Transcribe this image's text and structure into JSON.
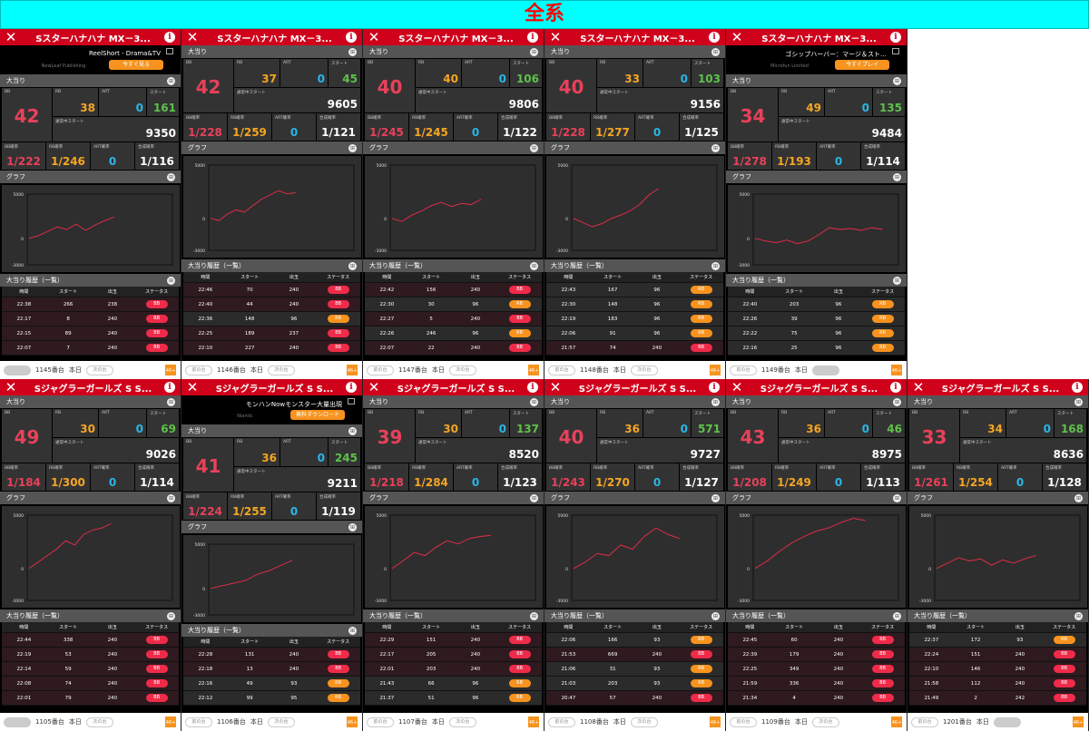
{
  "title": "全系",
  "labels": {
    "jackpot": "大当り",
    "graph": "グラフ",
    "history": "大当り履歴（一覧）",
    "bb": "BB",
    "rb": "RB",
    "art": "ART",
    "start": "スタート",
    "normal_start": "通常中スタート",
    "bb_rate": "BB確率",
    "rb_rate": "RB確率",
    "art_rate": "ART確率",
    "total_rate": "合成確率",
    "col_time": "時間",
    "col_start": "スタート",
    "col_out": "出玉",
    "col_status": "ステータス",
    "prev": "前の台",
    "next": "次の台",
    "today": "本日",
    "close": "✕",
    "info": "i",
    "grid_icon": "⊞",
    "app_badge": "46+",
    "graph_ticks": [
      "5000",
      "0",
      "-3000"
    ]
  },
  "colors": {
    "bb": "#e8415a",
    "rb": "#f5a623",
    "art": "#29b6e8",
    "start": "#5ec24a",
    "header": "#d0021b"
  },
  "panels": [
    {
      "title": "Sスターハナハナ MX－3...",
      "ad": {
        "title": "ReelShort - Drama&TV",
        "publisher": "NewLeaf Publishing",
        "button": "今すぐ見る"
      },
      "bb": "42",
      "rb": "38",
      "art": "0",
      "start": "161",
      "normal_start": "9350",
      "bb_rate": "1/222",
      "rb_rate": "1/246",
      "art_rate": "0",
      "total_rate": "1/116",
      "graph": {
        "progress": 0.6,
        "values": [
          0,
          300,
          800,
          1300,
          1000,
          1600,
          900,
          1500,
          2000,
          2400
        ]
      },
      "history": [
        [
          "22:38",
          "266",
          "238",
          "BB"
        ],
        [
          "22:17",
          "8",
          "240",
          "BB"
        ],
        [
          "22:15",
          "89",
          "240",
          "BB"
        ],
        [
          "22:07",
          "7",
          "240",
          "BB"
        ]
      ],
      "machine": "1145番台",
      "prev_enabled": false,
      "next_enabled": true
    },
    {
      "title": "Sスターハナハナ MX－3...",
      "bb": "42",
      "rb": "37",
      "art": "0",
      "start": "45",
      "normal_start": "9605",
      "bb_rate": "1/228",
      "rb_rate": "1/259",
      "art_rate": "0",
      "total_rate": "1/121",
      "graph": {
        "progress": 0.6,
        "values": [
          0,
          -200,
          400,
          800,
          600,
          1200,
          1800,
          2200,
          2600,
          2300,
          2400
        ]
      },
      "history": [
        [
          "22:46",
          "70",
          "240",
          "BB"
        ],
        [
          "22:40",
          "44",
          "240",
          "BB"
        ],
        [
          "22:36",
          "148",
          "96",
          "RB"
        ],
        [
          "22:25",
          "189",
          "237",
          "BB"
        ],
        [
          "22:10",
          "227",
          "240",
          "BB"
        ]
      ],
      "machine": "1146番台",
      "prev_enabled": true,
      "next_enabled": true
    },
    {
      "title": "Sスターハナハナ MX－3...",
      "bb": "40",
      "rb": "40",
      "art": "0",
      "start": "106",
      "normal_start": "9806",
      "bb_rate": "1/245",
      "rb_rate": "1/245",
      "art_rate": "0",
      "total_rate": "1/122",
      "graph": {
        "progress": 0.63,
        "values": [
          0,
          -300,
          300,
          700,
          1200,
          1500,
          1100,
          1400,
          1300,
          1800
        ]
      },
      "history": [
        [
          "22:42",
          "156",
          "240",
          "BB"
        ],
        [
          "22:30",
          "30",
          "96",
          "RB"
        ],
        [
          "22:27",
          "5",
          "240",
          "BB"
        ],
        [
          "22:26",
          "246",
          "96",
          "RB"
        ],
        [
          "22:07",
          "22",
          "240",
          "BB"
        ]
      ],
      "machine": "1147番台",
      "prev_enabled": true,
      "next_enabled": true
    },
    {
      "title": "Sスターハナハナ MX－3...",
      "bb": "40",
      "rb": "33",
      "art": "0",
      "start": "103",
      "normal_start": "9156",
      "bb_rate": "1/228",
      "rb_rate": "1/277",
      "art_rate": "0",
      "total_rate": "1/125",
      "graph": {
        "progress": 0.6,
        "values": [
          0,
          -400,
          -800,
          -500,
          0,
          300,
          700,
          1300,
          2200,
          2800
        ]
      },
      "history": [
        [
          "22:43",
          "167",
          "96",
          "RB"
        ],
        [
          "22:30",
          "148",
          "96",
          "RB"
        ],
        [
          "22:19",
          "183",
          "96",
          "RB"
        ],
        [
          "22:06",
          "91",
          "96",
          "RB"
        ],
        [
          "21:57",
          "74",
          "240",
          "BB"
        ]
      ],
      "machine": "1148番台",
      "prev_enabled": true,
      "next_enabled": true
    },
    {
      "title": "Sスターハナハナ MX－3...",
      "ad": {
        "title": "ゴシップハーバー：マージ＆スト…",
        "publisher": "Microfun Limited",
        "button": "今すぐプレイ"
      },
      "bb": "34",
      "rb": "49",
      "art": "0",
      "start": "135",
      "normal_start": "9484",
      "bb_rate": "1/278",
      "rb_rate": "1/193",
      "art_rate": "0",
      "total_rate": "1/114",
      "graph": {
        "progress": 0.9,
        "values": [
          0,
          -300,
          -500,
          -200,
          -600,
          -300,
          400,
          1200,
          1000,
          1100,
          900,
          1200,
          1000
        ]
      },
      "history": [
        [
          "22:40",
          "203",
          "96",
          "RB"
        ],
        [
          "22:26",
          "39",
          "96",
          "RB"
        ],
        [
          "22:22",
          "75",
          "96",
          "RB"
        ],
        [
          "22:16",
          "25",
          "96",
          "RB"
        ]
      ],
      "machine": "1149番台",
      "prev_enabled": true,
      "next_enabled": false
    },
    {
      "title": "Sジャグラーガールズ S S...",
      "bb": "49",
      "rb": "30",
      "art": "0",
      "start": "69",
      "normal_start": "9026",
      "bb_rate": "1/184",
      "rb_rate": "1/300",
      "art_rate": "0",
      "total_rate": "1/114",
      "graph": {
        "progress": 0.58,
        "values": [
          0,
          600,
          1200,
          1800,
          2600,
          2200,
          3200,
          3600,
          3800,
          4200
        ]
      },
      "history": [
        [
          "22:44",
          "338",
          "240",
          "BB"
        ],
        [
          "22:19",
          "53",
          "240",
          "BB"
        ],
        [
          "22:14",
          "59",
          "240",
          "BB"
        ],
        [
          "22:08",
          "74",
          "240",
          "BB"
        ],
        [
          "22:01",
          "79",
          "240",
          "BB"
        ]
      ],
      "machine": "1105番台",
      "prev_enabled": false,
      "next_enabled": true
    },
    {
      "title": "Sジャグラーガールズ S S...",
      "ad": {
        "title": "モンハンNowモンスター大量出現",
        "publisher": "Niantic",
        "button": "無料ダウンロード"
      },
      "bb": "41",
      "rb": "36",
      "art": "0",
      "start": "245",
      "normal_start": "9211",
      "bb_rate": "1/224",
      "rb_rate": "1/255",
      "art_rate": "0",
      "total_rate": "1/119",
      "graph": {
        "progress": 0.58,
        "values": [
          0,
          300,
          600,
          900,
          1600,
          2000,
          2600,
          3200
        ]
      },
      "history": [
        [
          "22:28",
          "131",
          "240",
          "BB"
        ],
        [
          "22:18",
          "13",
          "240",
          "BB"
        ],
        [
          "22:16",
          "49",
          "93",
          "RB"
        ],
        [
          "22:12",
          "99",
          "95",
          "RB"
        ]
      ],
      "machine": "1106番台",
      "prev_enabled": true,
      "next_enabled": true
    },
    {
      "title": "Sジャグラーガールズ S S...",
      "bb": "39",
      "rb": "30",
      "art": "0",
      "start": "137",
      "normal_start": "8520",
      "bb_rate": "1/218",
      "rb_rate": "1/284",
      "art_rate": "0",
      "total_rate": "1/123",
      "graph": {
        "progress": 0.7,
        "values": [
          0,
          700,
          1500,
          1200,
          2000,
          2600,
          2300,
          2800,
          3000,
          3100
        ]
      },
      "history": [
        [
          "22:29",
          "151",
          "240",
          "BB"
        ],
        [
          "22:17",
          "205",
          "240",
          "BB"
        ],
        [
          "22:01",
          "203",
          "240",
          "BB"
        ],
        [
          "21:43",
          "66",
          "96",
          "RB"
        ],
        [
          "21:37",
          "51",
          "96",
          "RB"
        ]
      ],
      "machine": "1107番台",
      "prev_enabled": true,
      "next_enabled": true
    },
    {
      "title": "Sジャグラーガールズ S S...",
      "bb": "40",
      "rb": "36",
      "art": "0",
      "start": "571",
      "normal_start": "9727",
      "bb_rate": "1/243",
      "rb_rate": "1/270",
      "art_rate": "0",
      "total_rate": "1/127",
      "graph": {
        "progress": 0.75,
        "values": [
          0,
          600,
          1400,
          1200,
          2200,
          1800,
          3000,
          3800,
          3200,
          2800
        ]
      },
      "history": [
        [
          "22:06",
          "166",
          "93",
          "RB"
        ],
        [
          "21:53",
          "669",
          "240",
          "BB"
        ],
        [
          "21:06",
          "31",
          "93",
          "RB"
        ],
        [
          "21:03",
          "203",
          "93",
          "RB"
        ],
        [
          "20:47",
          "57",
          "240",
          "BB"
        ]
      ],
      "machine": "1108番台",
      "prev_enabled": true,
      "next_enabled": true
    },
    {
      "title": "Sジャグラーガールズ S S...",
      "bb": "43",
      "rb": "36",
      "art": "0",
      "start": "46",
      "normal_start": "8975",
      "bb_rate": "1/208",
      "rb_rate": "1/249",
      "art_rate": "0",
      "total_rate": "1/113",
      "graph": {
        "progress": 0.78,
        "values": [
          0,
          700,
          1600,
          2400,
          3000,
          3500,
          3800,
          4300,
          4700,
          4500
        ]
      },
      "history": [
        [
          "22:45",
          "60",
          "240",
          "BB"
        ],
        [
          "22:39",
          "179",
          "240",
          "BB"
        ],
        [
          "22:25",
          "349",
          "240",
          "BB"
        ],
        [
          "21:59",
          "336",
          "240",
          "BB"
        ],
        [
          "21:34",
          "4",
          "240",
          "BB"
        ]
      ],
      "machine": "1109番台",
      "prev_enabled": true,
      "next_enabled": true
    },
    {
      "title": "Sジャグラーガールズ S S...",
      "bb": "33",
      "rb": "34",
      "art": "0",
      "start": "168",
      "normal_start": "8636",
      "bb_rate": "1/261",
      "rb_rate": "1/254",
      "art_rate": "0",
      "total_rate": "1/128",
      "graph": {
        "progress": 0.7,
        "values": [
          0,
          500,
          1000,
          700,
          900,
          300,
          800,
          500,
          900,
          1200
        ]
      },
      "history": [
        [
          "22:37",
          "172",
          "93",
          "RB"
        ],
        [
          "22:24",
          "151",
          "240",
          "BB"
        ],
        [
          "22:10",
          "146",
          "240",
          "BB"
        ],
        [
          "21:58",
          "112",
          "240",
          "BB"
        ],
        [
          "21:49",
          "2",
          "242",
          "BB"
        ]
      ],
      "machine": "1201番台",
      "prev_enabled": true,
      "next_enabled": false
    }
  ]
}
